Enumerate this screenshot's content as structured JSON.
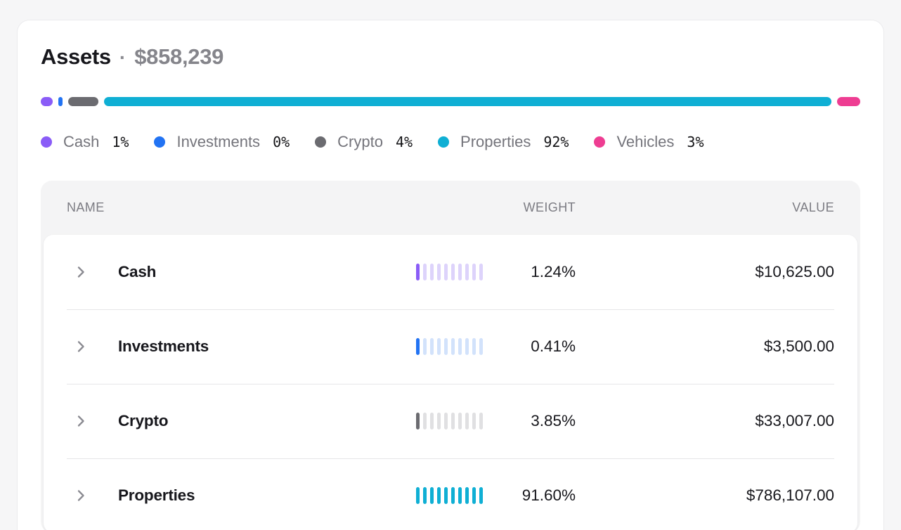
{
  "header": {
    "title": "Assets",
    "separator": "·",
    "total": "$858,239"
  },
  "allocation": {
    "segments": [
      {
        "name": "Cash",
        "color": "#8a5cf7",
        "percent": 1.24
      },
      {
        "name": "Investments",
        "color": "#2273f3",
        "percent": 0.41
      },
      {
        "name": "Crypto",
        "color": "#6b6b70",
        "percent": 3.85
      },
      {
        "name": "Properties",
        "color": "#0fafd4",
        "percent": 91.6
      },
      {
        "name": "Vehicles",
        "color": "#ee3d92",
        "percent": 2.9
      }
    ],
    "legend": [
      {
        "label": "Cash",
        "percent": "1%",
        "color": "#8a5cf7"
      },
      {
        "label": "Investments",
        "percent": "0%",
        "color": "#2273f3"
      },
      {
        "label": "Crypto",
        "percent": "4%",
        "color": "#6b6b70"
      },
      {
        "label": "Properties",
        "percent": "92%",
        "color": "#0fafd4"
      },
      {
        "label": "Vehicles",
        "percent": "3%",
        "color": "#ee3d92"
      }
    ]
  },
  "table": {
    "columns": {
      "name": "NAME",
      "weight": "WEIGHT",
      "value": "VALUE"
    },
    "rows": [
      {
        "name": "Cash",
        "weight": "1.24%",
        "value": "$10,625.00",
        "color": "#8a5cf7",
        "tint": "#ddd3fb",
        "filled_ticks": 1,
        "total_ticks": 10
      },
      {
        "name": "Investments",
        "weight": "0.41%",
        "value": "$3,500.00",
        "color": "#2273f3",
        "tint": "#d2e2fb",
        "filled_ticks": 1,
        "total_ticks": 10
      },
      {
        "name": "Crypto",
        "weight": "3.85%",
        "value": "$33,007.00",
        "color": "#6b6b70",
        "tint": "#e0e0e2",
        "filled_ticks": 1,
        "total_ticks": 10
      },
      {
        "name": "Properties",
        "weight": "91.60%",
        "value": "$786,107.00",
        "color": "#0fafd4",
        "tint": "#0fafd4",
        "filled_ticks": 10,
        "total_ticks": 10
      }
    ]
  }
}
